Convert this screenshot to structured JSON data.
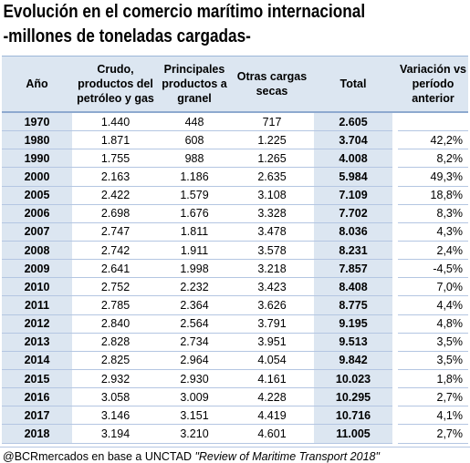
{
  "title_line1": "Evolución en el comercio marítimo internacional",
  "title_line2": "-millones de toneladas cargadas-",
  "headers": {
    "year": "Año",
    "crudo_1": "Crudo,",
    "crudo_2": "productos del",
    "crudo_3": "petróleo y gas",
    "princ_1": "Principales",
    "princ_2": "productos a",
    "princ_3": "granel",
    "otras_1": "Otras cargas",
    "otras_2": "secas",
    "total": "Total",
    "var_1": "Variación vs",
    "var_2": "período",
    "var_3": "anterior"
  },
  "rows": [
    {
      "year": "1970",
      "crudo": "1.440",
      "princ": "448",
      "otras": "717",
      "total": "2.605",
      "var": ""
    },
    {
      "year": "1980",
      "crudo": "1.871",
      "princ": "608",
      "otras": "1.225",
      "total": "3.704",
      "var": "42,2%"
    },
    {
      "year": "1990",
      "crudo": "1.755",
      "princ": "988",
      "otras": "1.265",
      "total": "4.008",
      "var": "8,2%"
    },
    {
      "year": "2000",
      "crudo": "2.163",
      "princ": "1.186",
      "otras": "2.635",
      "total": "5.984",
      "var": "49,3%"
    },
    {
      "year": "2005",
      "crudo": "2.422",
      "princ": "1.579",
      "otras": "3.108",
      "total": "7.109",
      "var": "18,8%"
    },
    {
      "year": "2006",
      "crudo": "2.698",
      "princ": "1.676",
      "otras": "3.328",
      "total": "7.702",
      "var": "8,3%"
    },
    {
      "year": "2007",
      "crudo": "2.747",
      "princ": "1.811",
      "otras": "3.478",
      "total": "8.036",
      "var": "4,3%"
    },
    {
      "year": "2008",
      "crudo": "2.742",
      "princ": "1.911",
      "otras": "3.578",
      "total": "8.231",
      "var": "2,4%"
    },
    {
      "year": "2009",
      "crudo": "2.641",
      "princ": "1.998",
      "otras": "3.218",
      "total": "7.857",
      "var": "-4,5%"
    },
    {
      "year": "2010",
      "crudo": "2.752",
      "princ": "2.232",
      "otras": "3.423",
      "total": "8.408",
      "var": "7,0%"
    },
    {
      "year": "2011",
      "crudo": "2.785",
      "princ": "2.364",
      "otras": "3.626",
      "total": "8.775",
      "var": "4,4%"
    },
    {
      "year": "2012",
      "crudo": "2.840",
      "princ": "2.564",
      "otras": "3.791",
      "total": "9.195",
      "var": "4,8%"
    },
    {
      "year": "2013",
      "crudo": "2.828",
      "princ": "2.734",
      "otras": "3.951",
      "total": "9.513",
      "var": "3,5%"
    },
    {
      "year": "2014",
      "crudo": "2.825",
      "princ": "2.964",
      "otras": "4.054",
      "total": "9.842",
      "var": "3,5%"
    },
    {
      "year": "2015",
      "crudo": "2.932",
      "princ": "2.930",
      "otras": "4.161",
      "total": "10.023",
      "var": "1,8%"
    },
    {
      "year": "2016",
      "crudo": "3.058",
      "princ": "3.009",
      "otras": "4.228",
      "total": "10.295",
      "var": "2,7%"
    },
    {
      "year": "2017",
      "crudo": "3.146",
      "princ": "3.151",
      "otras": "4.419",
      "total": "10.716",
      "var": "4,1%"
    },
    {
      "year": "2018",
      "crudo": "3.194",
      "princ": "3.210",
      "otras": "4.601",
      "total": "11.005",
      "var": "2,7%"
    }
  ],
  "footer": {
    "source": "@BCRmercados en base a UNCTAD ",
    "report": "\"Review of Maritime Transport 2018\""
  },
  "colors": {
    "header_shade": "#dce6f1",
    "row_border": "#b4c6e2"
  }
}
